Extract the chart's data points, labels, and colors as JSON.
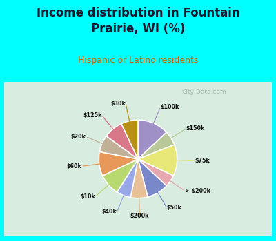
{
  "title": "Income distribution in Fountain\nPrairie, WI (%)",
  "subtitle": "Hispanic or Latino residents",
  "watermark": "City-Data.com",
  "bg_cyan": "#00ffff",
  "bg_chart_left": "#c8ead8",
  "bg_chart_right": "#f0faf5",
  "title_fontsize": 12,
  "subtitle_fontsize": 9,
  "title_color": "#1a1a2e",
  "subtitle_color": "#cc6600",
  "labels": [
    "$100k",
    "$150k",
    "$75k",
    "> $200k",
    "$50k",
    "$200k",
    "$40k",
    "$10k",
    "$60k",
    "$20k",
    "$125k",
    "$30k"
  ],
  "values": [
    13,
    6,
    13,
    5,
    9,
    7,
    6,
    9,
    10,
    7,
    8,
    7
  ],
  "colors": [
    "#a090c8",
    "#b8c898",
    "#e8e878",
    "#e8a8b0",
    "#7888c8",
    "#e8c098",
    "#98a8e8",
    "#b8d870",
    "#e89858",
    "#c0b098",
    "#d87888",
    "#b89018"
  ]
}
